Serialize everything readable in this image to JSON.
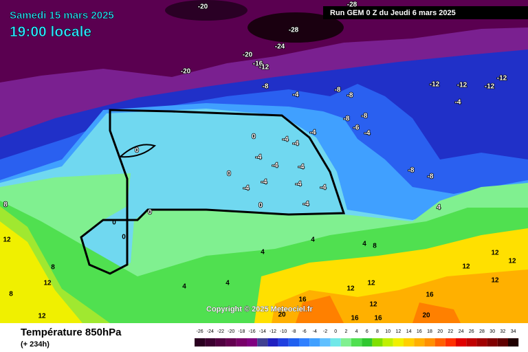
{
  "header": {
    "date": "Samedi 15 mars 2025",
    "time": "19:00 locale",
    "run": "Run GEM 0 Z du Jeudi 6 mars 2025"
  },
  "copyright": "Copyright © 2025 Meteociel.fr",
  "footer": {
    "title": "Température 850hPa",
    "lead": "(+ 234h)"
  },
  "map_labels": [
    -28,
    -20,
    -28,
    -24,
    -20,
    -20,
    -16,
    -12,
    -8,
    -4,
    -8,
    -8,
    -12,
    -12,
    -12,
    -12,
    -4,
    -8,
    -8,
    -6,
    -4,
    -4,
    0,
    -4,
    -4,
    0,
    -4,
    -4,
    -4,
    0,
    -4,
    -4,
    -4,
    -4,
    -8,
    -8,
    0,
    -4,
    0,
    0,
    0,
    4,
    4,
    4,
    4,
    8,
    12,
    8,
    12,
    8,
    12,
    4,
    4,
    8,
    12,
    12,
    12,
    12,
    12,
    12,
    16,
    16,
    16,
    16,
    20,
    20,
    12
  ],
  "color_scale": {
    "values": [
      -26,
      -24,
      -22,
      -20,
      -18,
      -16,
      -14,
      -12,
      -10,
      -8,
      -6,
      -4,
      -2,
      0,
      2,
      4,
      6,
      8,
      10,
      12,
      14,
      16,
      18,
      20,
      22,
      24,
      26,
      28,
      30,
      32,
      34
    ],
    "colors": [
      "#2a0020",
      "#3c0030",
      "#500040",
      "#640050",
      "#780068",
      "#800080",
      "#404090",
      "#2020c0",
      "#2040e0",
      "#2060f0",
      "#3080ff",
      "#40a0ff",
      "#60c0ff",
      "#70e8e8",
      "#80f090",
      "#50e050",
      "#30c830",
      "#80e000",
      "#c0f000",
      "#f0f000",
      "#ffd000",
      "#ffb000",
      "#ff9000",
      "#ff6000",
      "#ff3000",
      "#e00000",
      "#c00000",
      "#a00000",
      "#800000",
      "#600000",
      "#200000"
    ]
  }
}
